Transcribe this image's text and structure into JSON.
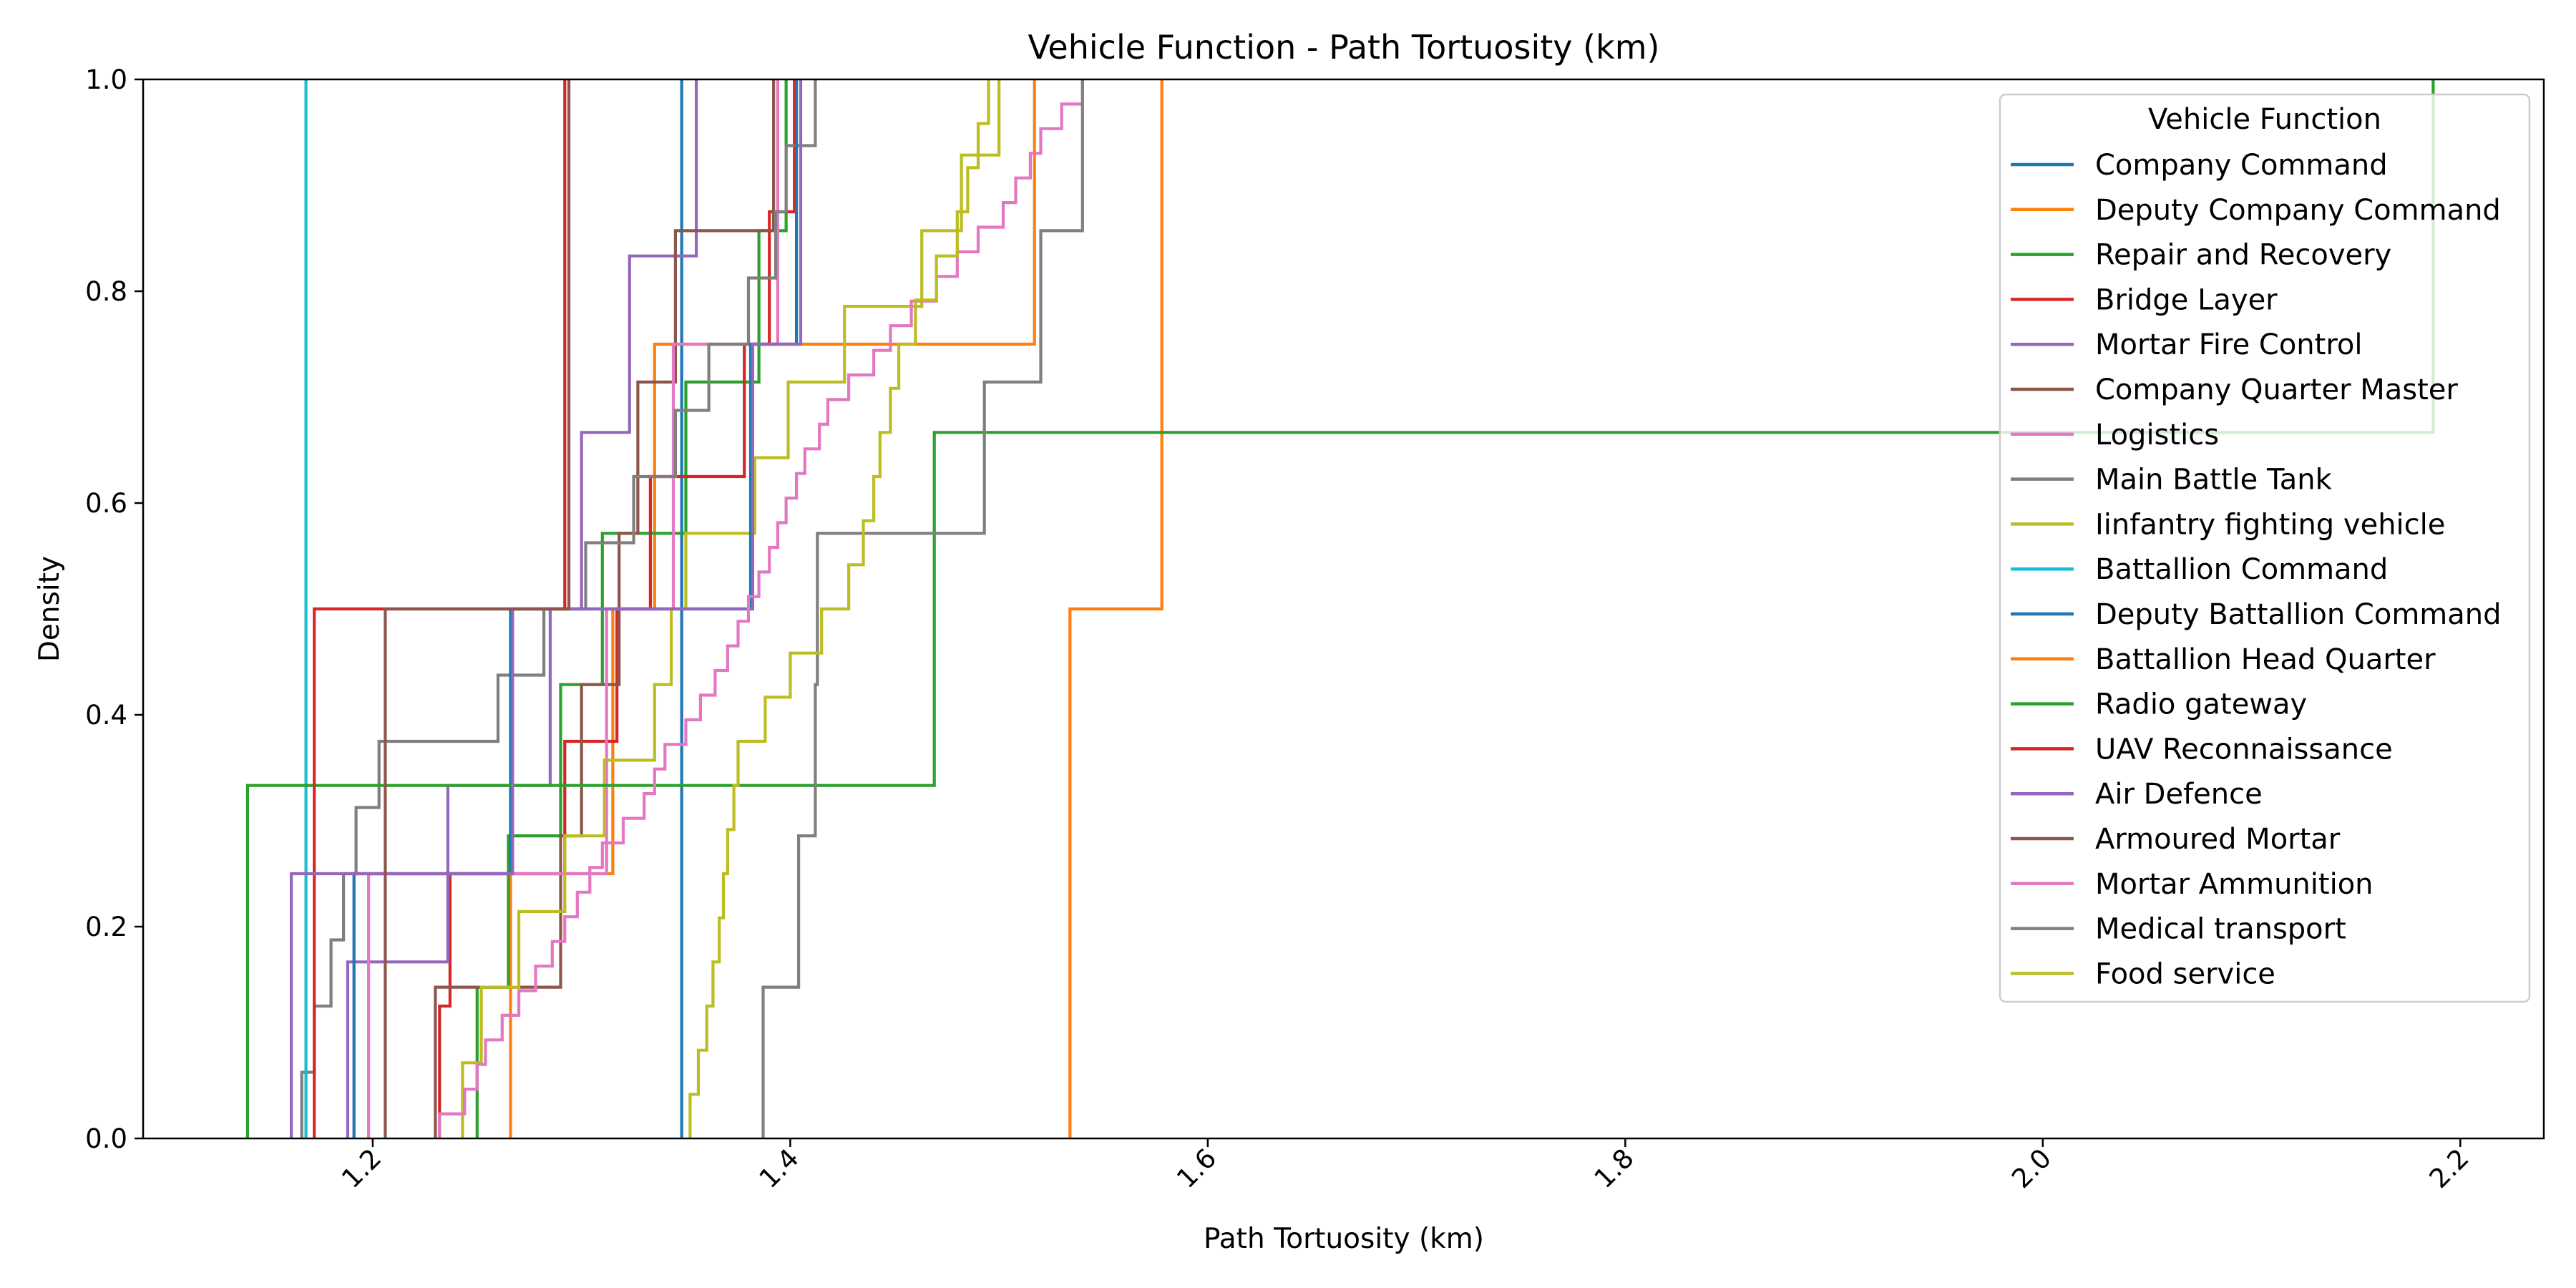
{
  "chart_data": {
    "type": "line",
    "subtype": "step-ecdf",
    "title": "Vehicle Function - Path Tortuosity (km)",
    "xlabel": "Path Tortuosity (km)",
    "ylabel": "Density",
    "xlim": [
      1.09,
      2.24
    ],
    "ylim": [
      0.0,
      1.0
    ],
    "xticks": [
      1.2,
      1.4,
      1.6,
      1.8,
      2.0,
      2.2
    ],
    "xtick_labels": [
      "1.2",
      "1.4",
      "1.6",
      "1.8",
      "2.0",
      "2.2"
    ],
    "xtick_rotation": 45,
    "yticks": [
      0.0,
      0.2,
      0.4,
      0.6,
      0.8,
      1.0
    ],
    "ytick_labels": [
      "0.0",
      "0.2",
      "0.4",
      "0.6",
      "0.8",
      "1.0"
    ],
    "grid": false,
    "legend": {
      "title": "Vehicle Function",
      "position": "top-right"
    },
    "series": [
      {
        "name": "Company Command",
        "color": "#1f77b4",
        "x": [
          1.348
        ]
      },
      {
        "name": "Deputy Company Command",
        "color": "#ff7f0e",
        "x": [
          1.266,
          1.315,
          1.335,
          1.517
        ]
      },
      {
        "name": "Repair and Recovery",
        "color": "#2ca02c",
        "x": [
          1.25,
          1.265,
          1.29,
          1.31,
          1.35,
          1.385,
          1.398
        ]
      },
      {
        "name": "Bridge Layer",
        "color": "#d62728",
        "x": [
          1.232,
          1.237,
          1.292,
          1.317,
          1.333,
          1.378,
          1.39,
          1.402
        ]
      },
      {
        "name": "Mortar Fire Control",
        "color": "#9467bd",
        "x": [
          1.188,
          1.236,
          1.285,
          1.3,
          1.323,
          1.355
        ]
      },
      {
        "name": "Company Quarter Master",
        "color": "#8c564b",
        "x": [
          1.23,
          1.29,
          1.3,
          1.318,
          1.327,
          1.345,
          1.392
        ]
      },
      {
        "name": "Logistics",
        "color": "#e377c2",
        "x": [
          1.198,
          1.312,
          1.344,
          1.394
        ]
      },
      {
        "name": "Main Battle Tank",
        "color": "#7f7f7f",
        "x": [
          1.166,
          1.172,
          1.18,
          1.186,
          1.192,
          1.203,
          1.26,
          1.282,
          1.302,
          1.325,
          1.345,
          1.361,
          1.38,
          1.393,
          1.398,
          1.412
        ]
      },
      {
        "name": "Iinfantry fighting vehicle",
        "color": "#bcbd22",
        "x": [
          1.243,
          1.252,
          1.27,
          1.292,
          1.311,
          1.335,
          1.343,
          1.35,
          1.383,
          1.399,
          1.426,
          1.463,
          1.482,
          1.5
        ]
      },
      {
        "name": "Battallion Command",
        "color": "#17becf",
        "x": [
          1.168
        ]
      },
      {
        "name": "Deputy Battallion Command",
        "color": "#1f77b4",
        "x": [
          1.191,
          1.266,
          1.381,
          1.403
        ]
      },
      {
        "name": "Battallion Head Quarter",
        "color": "#ff7f0e",
        "x": [
          1.534,
          1.578
        ]
      },
      {
        "name": "Radio gateway",
        "color": "#2ca02c",
        "x": [
          1.14,
          1.469,
          2.187
        ]
      },
      {
        "name": "UAV Reconnaissance",
        "color": "#d62728",
        "x": [
          1.172,
          1.292
        ]
      },
      {
        "name": "Air Defence",
        "color": "#9467bd",
        "x": [
          1.161,
          1.267,
          1.382,
          1.405
        ]
      },
      {
        "name": "Armoured Mortar",
        "color": "#8c564b",
        "x": [
          1.206,
          1.294
        ]
      },
      {
        "name": "Mortar Ammunition",
        "color": "#e377c2",
        "x": [
          1.232,
          1.244,
          1.25,
          1.254,
          1.262,
          1.27,
          1.278,
          1.286,
          1.292,
          1.298,
          1.304,
          1.31,
          1.32,
          1.33,
          1.335,
          1.34,
          1.35,
          1.357,
          1.364,
          1.37,
          1.375,
          1.38,
          1.385,
          1.39,
          1.394,
          1.398,
          1.403,
          1.407,
          1.414,
          1.418,
          1.428,
          1.44,
          1.448,
          1.458,
          1.47,
          1.48,
          1.49,
          1.502,
          1.508,
          1.515,
          1.52,
          1.53,
          1.54
        ]
      },
      {
        "name": "Medical transport",
        "color": "#7f7f7f",
        "x": [
          1.387,
          1.404,
          1.412,
          1.413,
          1.493,
          1.52,
          1.54
        ]
      },
      {
        "name": "Food service",
        "color": "#bcbd22",
        "x": [
          1.352,
          1.356,
          1.36,
          1.363,
          1.366,
          1.368,
          1.37,
          1.373,
          1.375,
          1.388,
          1.4,
          1.415,
          1.428,
          1.435,
          1.44,
          1.443,
          1.448,
          1.452,
          1.46,
          1.47,
          1.48,
          1.485,
          1.49,
          1.495
        ]
      }
    ]
  }
}
